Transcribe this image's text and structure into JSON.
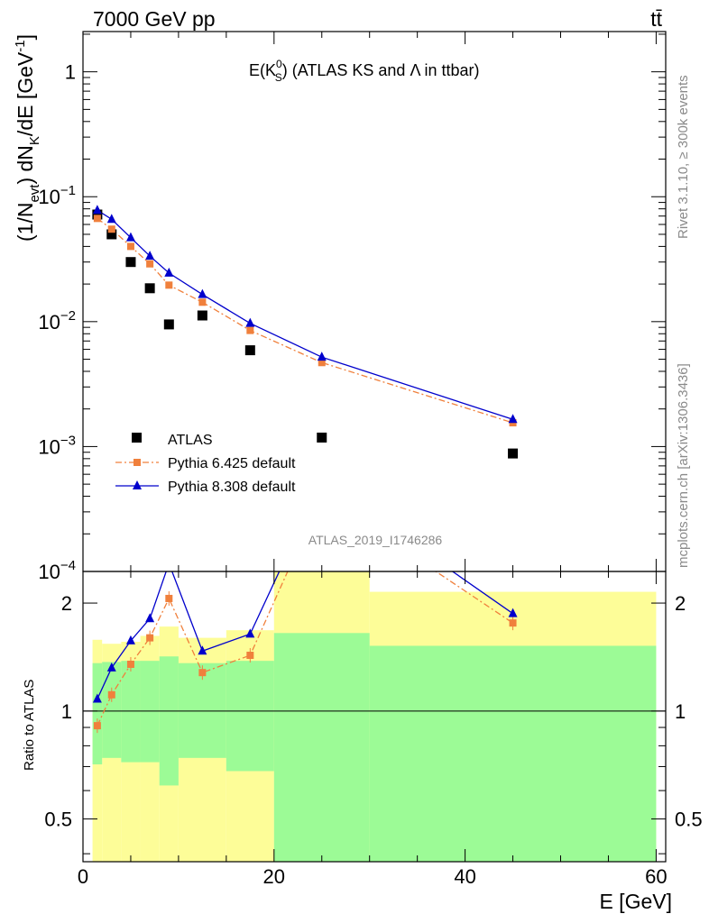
{
  "header": {
    "beam_label": "7000 GeV pp",
    "process_label": "tt̄"
  },
  "side_labels": {
    "rivet": "Rivet 3.1.10, ≥ 300k events",
    "mcplots": "mcplots.cern.ch [arXiv:1306.3436]"
  },
  "colors": {
    "atlas": "#000000",
    "pythia6": "#f0803c",
    "pythia8": "#0000cc",
    "band_inner": "#9cfb96",
    "band_outer": "#fdfd98"
  },
  "chart_data": {
    "type": "scatter",
    "title": "E(K",
    "title_sup": "0",
    "title_sub": "S",
    "title_rest": ") (ATLAS KS and Λ in ttbar)",
    "analysis_id": "ATLAS_2019_I1746286",
    "xlabel": "E [GeV]",
    "ylabel_parts": [
      "(1/N",
      "evt",
      ") dN",
      "K",
      "/dE [GeV",
      "-1",
      "]"
    ],
    "ratio_ylabel": "Ratio to ATLAS",
    "xlim": [
      0,
      61
    ],
    "ylim_log": [
      0.0001,
      2.1
    ],
    "ratio_ylim": [
      0.38,
      2.45
    ],
    "x_ticks": [
      0,
      20,
      40,
      60
    ],
    "y_ticks": [
      {
        "value": 1,
        "base": "1",
        "exp": ""
      },
      {
        "value": 0.1,
        "base": "10",
        "exp": "−1"
      },
      {
        "value": 0.01,
        "base": "10",
        "exp": "−2"
      },
      {
        "value": 0.001,
        "base": "10",
        "exp": "−3"
      },
      {
        "value": 0.0001,
        "base": "10",
        "exp": "−4"
      }
    ],
    "ratio_ticks": [
      {
        "value": 0.5,
        "label": "0.5"
      },
      {
        "value": 1,
        "label": "1"
      },
      {
        "value": 2,
        "label": "2"
      }
    ],
    "series": [
      {
        "name": "ATLAS",
        "x": [
          1.5,
          3,
          5,
          7,
          9,
          12.5,
          17.5,
          25,
          45
        ],
        "values": [
          0.072,
          0.05,
          0.03,
          0.0185,
          0.0095,
          0.0112,
          0.0059,
          0.00118,
          0.00088
        ]
      },
      {
        "name": "Pythia 6.425 default",
        "x": [
          1.5,
          3,
          5,
          7,
          9,
          12.5,
          17.5,
          25,
          45
        ],
        "values": [
          0.067,
          0.055,
          0.04,
          0.029,
          0.0196,
          0.0143,
          0.0085,
          0.0047,
          0.00155
        ],
        "ratio": [
          0.91,
          1.11,
          1.35,
          1.6,
          2.06,
          1.28,
          1.43,
          4.0,
          1.76
        ]
      },
      {
        "name": "Pythia 8.308 default",
        "x": [
          1.5,
          3,
          5,
          7,
          9,
          12.5,
          17.5,
          25,
          45
        ],
        "values": [
          0.078,
          0.066,
          0.047,
          0.0335,
          0.0245,
          0.0165,
          0.0097,
          0.0052,
          0.00165
        ],
        "ratio": [
          1.08,
          1.32,
          1.57,
          1.81,
          2.58,
          1.47,
          1.64,
          4.4,
          1.87
        ]
      }
    ],
    "bands": {
      "edges": [
        1,
        2,
        4,
        6,
        8,
        10,
        15,
        20,
        30,
        60
      ],
      "inner_lo": [
        0.71,
        0.74,
        0.72,
        0.72,
        0.62,
        0.74,
        0.68,
        0.34,
        0.34
      ],
      "inner_hi": [
        1.36,
        1.37,
        1.38,
        1.38,
        1.42,
        1.36,
        1.38,
        1.65,
        1.52
      ],
      "outer_lo": [
        0.34,
        0.36,
        0.34,
        0.34,
        0.34,
        0.36,
        0.34,
        0.34,
        0.35
      ],
      "outer_hi": [
        1.58,
        1.54,
        1.56,
        1.62,
        1.72,
        1.6,
        1.68,
        2.6,
        2.15
      ]
    }
  }
}
